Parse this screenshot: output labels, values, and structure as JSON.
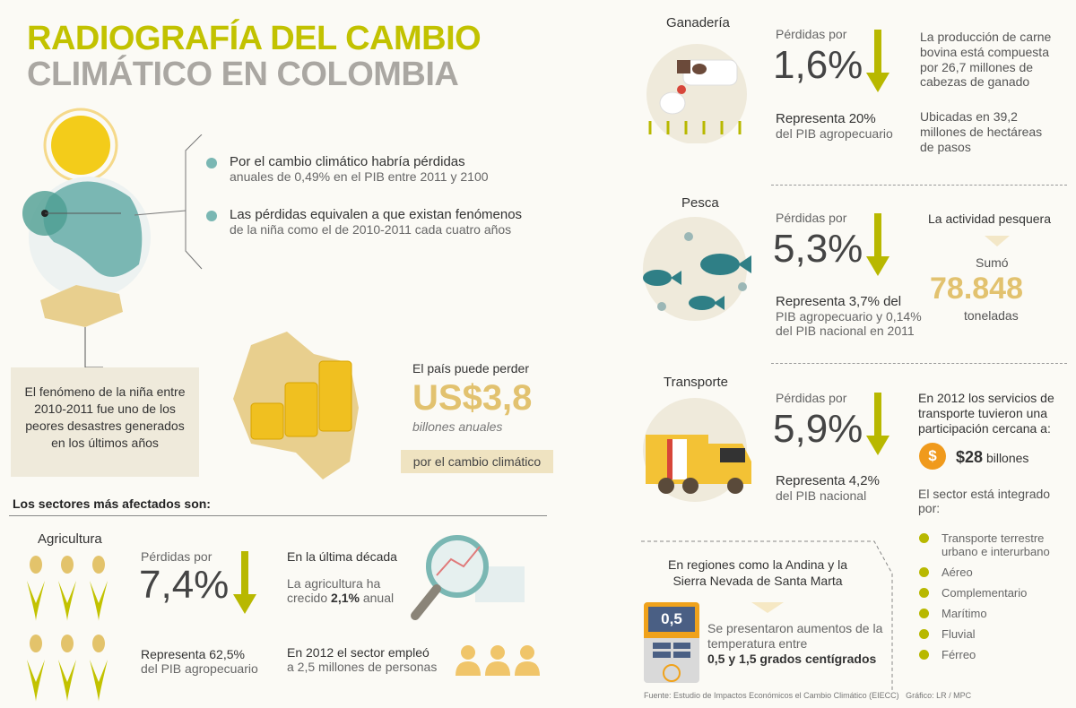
{
  "title": {
    "line1": "RADIOGRAFÍA DEL CAMBIO",
    "line2": "CLIMÁTICO EN COLOMBIA"
  },
  "intro": {
    "bullets": [
      {
        "strong": "Por el cambio climático habría pérdidas",
        "rest": "anuales de 0,49% en el PIB entre 2011 y 2100"
      },
      {
        "strong": "Las pérdidas equivalen a que existan fenómenos",
        "rest": "de la niña como el de 2010-2011 cada cuatro años"
      }
    ]
  },
  "nina_box": "El fenómeno de la niña entre 2010-2011 fue uno de los peores desastres generados en los últimos años",
  "loss": {
    "lead": "El país puede perder",
    "amount": "US$3,8",
    "unit": "billones anuales",
    "tag": "por el cambio climático"
  },
  "sectors_heading": "Los sectores más afectados son:",
  "agricultura": {
    "name": "Agricultura",
    "loss_label": "Pérdidas por",
    "loss": "7,4%",
    "rep_strong": "Representa 62,5%",
    "rep_rest": "del PIB agropecuario",
    "decade_title": "En la última década",
    "decade_text": "La agricultura ha crecido",
    "decade_value": "2,1%",
    "decade_suffix": "anual",
    "emp_strong": "En 2012 el sector empleó",
    "emp_rest": "a 2,5 millones de personas"
  },
  "ganaderia": {
    "name": "Ganadería",
    "loss_label": "Pérdidas por",
    "loss": "1,6%",
    "rep_strong": "Representa 20%",
    "rep_rest": "del PIB agropecuario",
    "info1": "La producción de carne bovina está compuesta por 26,7 millones de cabezas de ganado",
    "info2": "Ubicadas en 39,2 millones de hectáreas de pasos"
  },
  "pesca": {
    "name": "Pesca",
    "loss_label": "Pérdidas por",
    "loss": "5,3%",
    "rep_strong": "Representa 3,7% del",
    "rep_rest": "PIB agropecuario y 0,14% del PIB nacional en 2011",
    "act": "La actividad pesquera",
    "sumo": "Sumó",
    "value": "78.848",
    "unit": "toneladas"
  },
  "transporte": {
    "name": "Transporte",
    "loss_label": "Pérdidas por",
    "loss": "5,9%",
    "rep_strong": "Representa 4,2%",
    "rep_rest": "del PIB nacional",
    "info": "En 2012 los servicios de transporte tuvieron una participación cercana a:",
    "amount": "$28",
    "amount_unit": "billones",
    "integrated": "El sector está integrado por:",
    "items": [
      "Transporte terrestre urbano e interurbano",
      "Aéreo",
      "Complementario",
      "Marítimo",
      "Fluvial",
      "Férreo"
    ]
  },
  "regiones": {
    "title": "En regiones como la Andina y la Sierra Nevada de Santa Marta",
    "thermo": "0,5",
    "text": "Se presentaron aumentos de la temperatura entre",
    "strong": "0,5 y 1,5 grados centígrados"
  },
  "source": "Fuente: Estudio de Impactos Económicos el Cambio Climático (EIECC)   Gráfico: LR / MPC",
  "colors": {
    "olive": "#b8b800",
    "title_green": "#c2c200",
    "gray": "#aaa7a2",
    "teal": "#7ab7b3",
    "gold": "#e2c26f"
  }
}
